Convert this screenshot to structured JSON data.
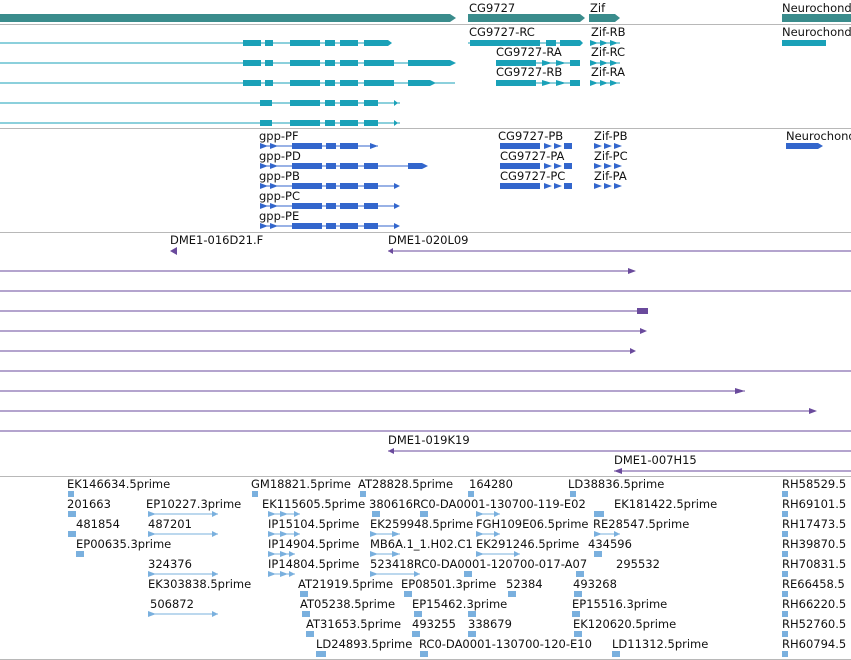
{
  "colors": {
    "gene": "#3a8c8c",
    "mrna": "#1aa1b8",
    "protein": "#3366cc",
    "bac": "#6a4a9c",
    "est": "#7ab0de",
    "divider": "#b8b8b8"
  },
  "gene_track": {
    "labels": [
      "CG9727",
      "Zif",
      "Neurochond"
    ]
  },
  "mrna_track": {
    "labels": [
      "CG9727-RC",
      "Zif-RB",
      "Neurochond",
      "CG9727-RA",
      "Zif-RC",
      "CG9727-RB",
      "Zif-RA"
    ]
  },
  "protein_track": {
    "labels": [
      "gpp-PF",
      "CG9727-PB",
      "Zif-PB",
      "Neurochond",
      "gpp-PD",
      "CG9727-PA",
      "Zif-PC",
      "gpp-PB",
      "CG9727-PC",
      "Zif-PA",
      "gpp-PC",
      "gpp-PE"
    ]
  },
  "bac_track": {
    "labels": [
      "DME1-016D21.F",
      "DME1-020L09",
      "DME1-019K19",
      "DME1-007H15"
    ]
  },
  "est_track": {
    "labels": [
      "EK146634.5prime",
      "GM18821.5prime",
      "AT28828.5prime",
      "164280",
      "LD38836.5prime",
      "RH58529.5",
      "201663",
      "EP10227.3prime",
      "EK115605.5prime",
      "380616RC0-DA0001-130700-119-E02",
      "EK181422.5prime",
      "RH69101.5",
      "481854",
      "487201",
      "IP15104.5prime",
      "EK259948.5prime",
      "FGH109E06.5prime",
      "RE28547.5prime",
      "RH17473.5",
      "EP00635.3prime",
      "IP14904.5prime",
      "MB6A.1_1.H02.C1",
      "EK291246.5prime",
      "434596",
      "RH39870.5",
      "324376",
      "IP14804.5prime",
      "523418RC0-DA0001-120700-017-A07",
      "295532",
      "RH70831.5",
      "EK303838.5prime",
      "AT21919.5prime",
      "EP08501.3prime",
      "52384",
      "493268",
      "RE66458.5",
      "506872",
      "AT05238.5prime",
      "EP15462.3prime",
      "EP15516.3prime",
      "RH66220.5",
      "AT31653.5prime",
      "493255",
      "338679",
      "EK120620.5prime",
      "RH52760.5",
      "LD24893.5prime",
      "RC0-DA0001-130700-120-E10",
      "LD11312.5prime",
      "RH60794.5"
    ]
  }
}
